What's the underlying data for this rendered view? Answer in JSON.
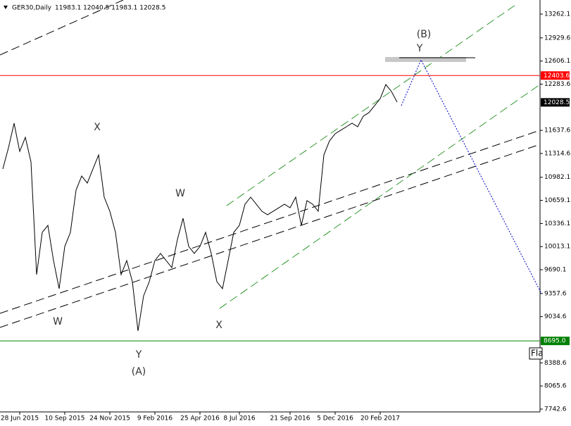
{
  "header": {
    "symbol": "GER30,Daily",
    "ohlc": "11983.1 12040.5 11983.1 12028.5"
  },
  "chart_data": {
    "type": "line",
    "color": "#000000",
    "categories": [
      null,
      null,
      null,
      "28 Jun 2015",
      null,
      null,
      null,
      null,
      null,
      null,
      null,
      "10 Sep 2015",
      null,
      null,
      null,
      null,
      null,
      null,
      null,
      "24 Nov 2015",
      null,
      null,
      null,
      null,
      null,
      null,
      null,
      "9 Feb 2016",
      null,
      null,
      null,
      null,
      null,
      null,
      null,
      "25 Apr 2016",
      null,
      null,
      null,
      null,
      null,
      null,
      "8 Jul 2016",
      null,
      null,
      null,
      null,
      null,
      null,
      null,
      null,
      "21 Sep 2016",
      null,
      null,
      null,
      null,
      null,
      null,
      null,
      "5 Dec 2016",
      null,
      null,
      null,
      null,
      null,
      null,
      null,
      "20 Feb 2017",
      null,
      null,
      null
    ],
    "values": [
      11098,
      11393,
      11737,
      11343,
      11540,
      11196,
      9622,
      10212,
      10310,
      9818,
      9425,
      10015,
      10212,
      10802,
      10999,
      10901,
      11098,
      11294,
      10704,
      10507,
      10212,
      9622,
      9818,
      9523,
      8835,
      9327,
      9523,
      9818,
      9917,
      9818,
      9720,
      10114,
      10409,
      10015,
      9917,
      10015,
      10212,
      9917,
      9523,
      9425,
      9818,
      10212,
      10310,
      10606,
      10704,
      10606,
      10507,
      10458,
      10507,
      10556,
      10606,
      10556,
      10704,
      10310,
      10655,
      10606,
      10507,
      11294,
      11491,
      11590,
      11639,
      11688,
      11737,
      11688,
      11836,
      11885,
      11983,
      12081,
      12278,
      12180,
      12032
    ],
    "ylim": [
      7703,
      13459
    ],
    "yticks": [
      13262.1,
      12929.6,
      12606.1,
      12283.6,
      11637.6,
      11314.6,
      10982.1,
      10659.1,
      10336.1,
      10013.1,
      9690.1,
      9357.6,
      9034.6,
      8388.6,
      8065.6,
      7742.6
    ],
    "levels": [
      {
        "value": 12403.6,
        "color": "#ff0000"
      },
      {
        "value": 8695,
        "label": "8695.0",
        "color": "#008000"
      },
      {
        "value": 12028.5,
        "color": "#000000"
      }
    ],
    "annotations": [
      "X",
      "W",
      "Y",
      "(A)",
      "W",
      "X",
      "(B)",
      "Y"
    ],
    "note": "Fla"
  }
}
